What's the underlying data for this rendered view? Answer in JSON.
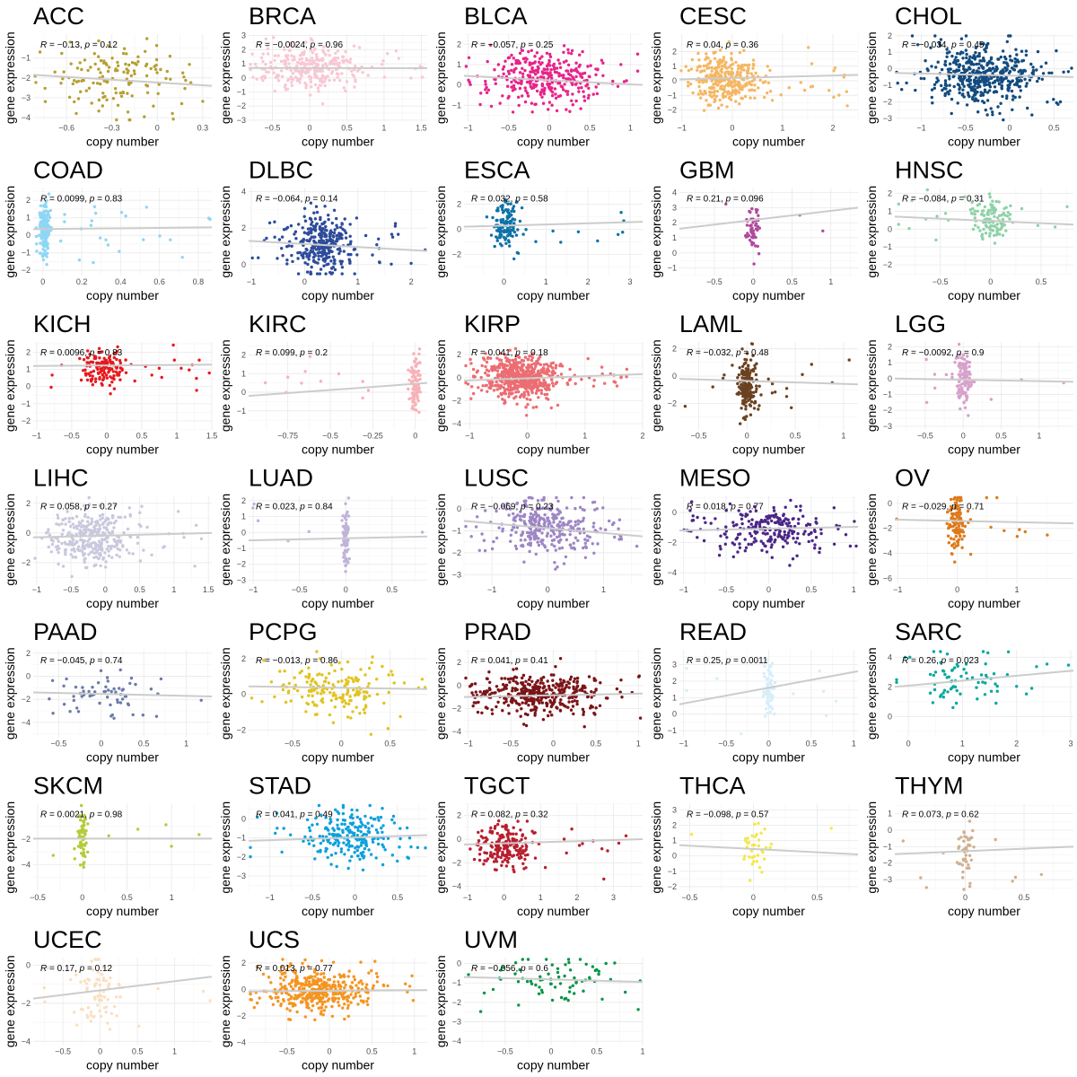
{
  "figure": {
    "xlabel": "copy number",
    "ylabel": "gene expression",
    "fit_line_color": "#cccccc",
    "grid_color": "#ebebeb"
  },
  "chart_data": [
    {
      "type": "scatter",
      "title": "ACC",
      "color": "#b5a033",
      "r": "−0.13",
      "p": "0.12",
      "xlim": [
        -0.82,
        0.36
      ],
      "ylim": [
        -4.2,
        0.2
      ],
      "xticks": [
        -0.6,
        -0.3,
        0.0,
        0.3
      ],
      "yticks": [
        -4,
        -3,
        -2,
        -1
      ],
      "fit": [
        -1.85,
        -2.4
      ],
      "x_center": -0.25,
      "x_spread": 0.22,
      "y_center": -2.1,
      "y_spread": 1.0,
      "n": 140
    },
    {
      "type": "scatter",
      "title": "BRCA",
      "color": "#f8c8d4",
      "r": "−0.0024",
      "p": "0.96",
      "xlim": [
        -0.82,
        1.58
      ],
      "ylim": [
        -3.1,
        3.1
      ],
      "xticks": [
        -0.5,
        0.0,
        0.5,
        1.0,
        1.5
      ],
      "yticks": [
        -3,
        -2,
        -1,
        0,
        1,
        2,
        3
      ],
      "fit": [
        0.7,
        0.68
      ],
      "x_center": 0.05,
      "x_spread": 0.35,
      "y_center": 0.7,
      "y_spread": 0.9,
      "n": 300
    },
    {
      "type": "scatter",
      "title": "BLCA",
      "color": "#e8238a",
      "r": "−0.057",
      "p": "0.25",
      "xlim": [
        -1.05,
        1.15
      ],
      "ylim": [
        -1.8,
        2.5
      ],
      "xticks": [
        -1.0,
        -0.5,
        0.0,
        0.5,
        1.0
      ],
      "yticks": [
        -1,
        0,
        1,
        2
      ],
      "fit": [
        0.45,
        0.0
      ],
      "x_center": -0.1,
      "x_spread": 0.35,
      "y_center": 0.3,
      "y_spread": 0.7,
      "n": 330
    },
    {
      "type": "scatter",
      "title": "CESC",
      "color": "#f5b763",
      "r": "0.04",
      "p": "0.36",
      "xlim": [
        -1.05,
        2.5
      ],
      "ylim": [
        -2.8,
        3.2
      ],
      "xticks": [
        -1,
        0,
        1,
        2
      ],
      "yticks": [
        -2,
        -1,
        0,
        1,
        2
      ],
      "fit": [
        0.1,
        0.4
      ],
      "x_center": -0.1,
      "x_spread": 0.35,
      "y_center": 0.1,
      "y_spread": 0.8,
      "n": 330
    },
    {
      "type": "scatter",
      "title": "CHOL",
      "color": "#124b7f",
      "r": "−0.034",
      "p": "0.45",
      "xlim": [
        -1.3,
        0.72
      ],
      "ylim": [
        -3.2,
        2.1
      ],
      "xticks": [
        -1.0,
        -0.5,
        0.0,
        0.5
      ],
      "yticks": [
        -3,
        -2,
        -1,
        0,
        1,
        2
      ],
      "fit": [
        -0.25,
        -0.5
      ],
      "x_center": -0.3,
      "x_spread": 0.3,
      "y_center": -0.4,
      "y_spread": 0.9,
      "n": 480
    },
    {
      "type": "scatter",
      "title": "COAD",
      "color": "#8ed6f5",
      "r": "0.0099",
      "p": "0.83",
      "xlim": [
        -0.05,
        0.87
      ],
      "ylim": [
        -2.3,
        2.7
      ],
      "xticks": [
        0.0,
        0.2,
        0.4,
        0.6,
        0.8
      ],
      "yticks": [
        -2,
        -1,
        0,
        1,
        2
      ],
      "fit": [
        0.35,
        0.45
      ],
      "x_center": 0.01,
      "x_spread": 0.015,
      "y_center": 0.3,
      "y_spread": 0.8,
      "n": 180
    },
    {
      "type": "scatter",
      "title": "DLBC",
      "color": "#2d4c9a",
      "r": "−0.064",
      "p": "0.14",
      "xlim": [
        -1.05,
        2.3
      ],
      "ylim": [
        -0.6,
        4.2
      ],
      "xticks": [
        -1,
        0,
        1,
        2
      ],
      "yticks": [
        0,
        2,
        4
      ],
      "fit": [
        1.3,
        0.75
      ],
      "x_center": 0.3,
      "x_spread": 0.3,
      "y_center": 1.1,
      "y_spread": 0.8,
      "n": 330
    },
    {
      "type": "scatter",
      "title": "ESCA",
      "color": "#0e72a8",
      "r": "0.032",
      "p": "0.58",
      "xlim": [
        -0.95,
        3.3
      ],
      "ylim": [
        -3.7,
        3.3
      ],
      "xticks": [
        0,
        1,
        2,
        3
      ],
      "yticks": [
        -2,
        0,
        2
      ],
      "fit": [
        0.2,
        0.6
      ],
      "x_center": 0.05,
      "x_spread": 0.15,
      "y_center": 0.3,
      "y_spread": 1.0,
      "n": 130
    },
    {
      "type": "scatter",
      "title": "GBM",
      "color": "#b04a9c",
      "r": "0.21",
      "p": "0.096",
      "xlim": [
        -0.95,
        1.35
      ],
      "ylim": [
        -1.5,
        4.3
      ],
      "xticks": [
        -0.5,
        0.0,
        0.5,
        1.0
      ],
      "yticks": [
        -1,
        0,
        1,
        2,
        3,
        4
      ],
      "fit": [
        1.6,
        3.0
      ],
      "x_center": 0.0,
      "x_spread": 0.05,
      "y_center": 1.8,
      "y_spread": 0.8,
      "n": 55
    },
    {
      "type": "scatter",
      "title": "HNSC",
      "color": "#8fd1a8",
      "r": "−0.084",
      "p": "0.31",
      "xlim": [
        -0.95,
        0.82
      ],
      "ylim": [
        -2.6,
        2.3
      ],
      "xticks": [
        -0.5,
        0.0,
        0.5
      ],
      "yticks": [
        -2,
        -1,
        0,
        1,
        2
      ],
      "fit": [
        0.7,
        0.25
      ],
      "x_center": 0.0,
      "x_spread": 0.1,
      "y_center": 0.5,
      "y_spread": 0.6,
      "n": 130
    },
    {
      "type": "scatter",
      "title": "KICH",
      "color": "#e8191d",
      "r": "0.0096",
      "p": "0.83",
      "xlim": [
        -1.05,
        1.5
      ],
      "ylim": [
        -2.5,
        2.6
      ],
      "xticks": [
        -1.0,
        -0.5,
        0.0,
        0.5,
        1.0,
        1.5
      ],
      "yticks": [
        -2,
        -1,
        0,
        1,
        2
      ],
      "fit": [
        1.2,
        1.28
      ],
      "x_center": -0.05,
      "x_spread": 0.15,
      "y_center": 1.1,
      "y_spread": 0.6,
      "n": 150
    },
    {
      "type": "scatter",
      "title": "KIRC",
      "color": "#f9b1b7",
      "r": "0.099",
      "p": "0.2",
      "xlim": [
        -0.98,
        0.07
      ],
      "ylim": [
        -2.0,
        2.7
      ],
      "xticks": [
        -0.75,
        -0.5,
        -0.25,
        0.0
      ],
      "yticks": [
        -1,
        0,
        1,
        2
      ],
      "fit": [
        -0.2,
        0.5
      ],
      "x_center": 0.0,
      "x_spread": 0.015,
      "y_center": 0.4,
      "y_spread": 0.8,
      "n": 110
    },
    {
      "type": "scatter",
      "title": "KIRP",
      "color": "#ec6d72",
      "r": "0.041",
      "p": "0.18",
      "xlim": [
        -1.1,
        2.0
      ],
      "ylim": [
        -4.5,
        3.1
      ],
      "xticks": [
        -1,
        0,
        1,
        2
      ],
      "yticks": [
        -4,
        -2,
        0,
        2
      ],
      "fit": [
        -0.25,
        0.3
      ],
      "x_center": -0.1,
      "x_spread": 0.35,
      "y_center": 0.0,
      "y_spread": 0.9,
      "n": 550
    },
    {
      "type": "scatter",
      "title": "LAML",
      "color": "#6b4221",
      "r": "−0.032",
      "p": "0.48",
      "xlim": [
        -0.7,
        1.15
      ],
      "ylim": [
        -3.9,
        2.5
      ],
      "xticks": [
        -0.5,
        0.0,
        0.5,
        1.0
      ],
      "yticks": [
        -2,
        0,
        2
      ],
      "fit": [
        -0.2,
        -0.6
      ],
      "x_center": 0.0,
      "x_spread": 0.05,
      "y_center": -0.5,
      "y_spread": 1.1,
      "n": 180
    },
    {
      "type": "scatter",
      "title": "LGG",
      "color": "#d7a1cc",
      "r": "−0.0092",
      "p": "0.9",
      "xlim": [
        -0.9,
        1.45
      ],
      "ylim": [
        -3.2,
        2.3
      ],
      "xticks": [
        -0.5,
        0.0,
        0.5,
        1.0
      ],
      "yticks": [
        -3,
        -2,
        -1,
        0,
        1,
        2
      ],
      "fit": [
        0.0,
        -0.2
      ],
      "x_center": 0.0,
      "x_spread": 0.06,
      "y_center": 0.0,
      "y_spread": 0.9,
      "n": 110
    },
    {
      "type": "scatter",
      "title": "LIHC",
      "color": "#c9c8de",
      "r": "0.058",
      "p": "0.27",
      "xlim": [
        -1.05,
        1.55
      ],
      "ylim": [
        -3.4,
        2.5
      ],
      "xticks": [
        -1.0,
        -0.5,
        0.0,
        0.5,
        1.0,
        1.5
      ],
      "yticks": [
        -2,
        0,
        2
      ],
      "fit": [
        -0.3,
        0.0
      ],
      "x_center": -0.2,
      "x_spread": 0.3,
      "y_center": -0.3,
      "y_spread": 0.9,
      "n": 330
    },
    {
      "type": "scatter",
      "title": "LUAD",
      "color": "#c0b3d9",
      "r": "0.023",
      "p": "0.84",
      "xlim": [
        -1.05,
        0.88
      ],
      "ylim": [
        -3.2,
        2.3
      ],
      "xticks": [
        -1.0,
        -0.5,
        0.0,
        0.5
      ],
      "yticks": [
        -3,
        -2,
        -1,
        0,
        1,
        2
      ],
      "fit": [
        -0.5,
        -0.25
      ],
      "x_center": 0.0,
      "x_spread": 0.02,
      "y_center": -0.4,
      "y_spread": 0.9,
      "n": 85
    },
    {
      "type": "scatter",
      "title": "LUSC",
      "color": "#9d86c4",
      "r": "−0.069",
      "p": "0.23",
      "xlim": [
        -1.5,
        1.7
      ],
      "ylim": [
        -3.4,
        0.6
      ],
      "xticks": [
        -1,
        0,
        1
      ],
      "yticks": [
        -3,
        -2,
        -1,
        0
      ],
      "fit": [
        -0.55,
        -1.25
      ],
      "x_center": -0.1,
      "x_spread": 0.5,
      "y_center": -0.8,
      "y_spread": 0.7,
      "n": 320
    },
    {
      "type": "scatter",
      "title": "MESO",
      "color": "#4a2687",
      "r": "0.018",
      "p": "0.77",
      "xlim": [
        -1.05,
        1.05
      ],
      "ylim": [
        -4.7,
        1.1
      ],
      "xticks": [
        -1.0,
        -0.5,
        0.0,
        0.5,
        1.0
      ],
      "yticks": [
        -4,
        -2,
        0
      ],
      "fit": [
        -1.2,
        -0.95
      ],
      "x_center": 0.0,
      "x_spread": 0.35,
      "y_center": -1.1,
      "y_spread": 0.8,
      "n": 230
    },
    {
      "type": "scatter",
      "title": "OV",
      "color": "#de7a1c",
      "r": "−0.029",
      "p": "0.71",
      "xlim": [
        -1.05,
        1.95
      ],
      "ylim": [
        -6.4,
        0.6
      ],
      "xticks": [
        -1,
        0,
        1
      ],
      "yticks": [
        -6,
        -4,
        -2,
        0
      ],
      "fit": [
        -1.3,
        -1.6
      ],
      "x_center": 0.0,
      "x_spread": 0.08,
      "y_center": -1.5,
      "y_spread": 1.2,
      "n": 120
    },
    {
      "type": "scatter",
      "title": "PAAD",
      "color": "#6b7ba8",
      "r": "−0.045",
      "p": "0.74",
      "xlim": [
        -0.8,
        1.3
      ],
      "ylim": [
        -5.3,
        2.3
      ],
      "xticks": [
        -0.5,
        0.0,
        0.5,
        1.0
      ],
      "yticks": [
        -4,
        -2,
        0,
        2
      ],
      "fit": [
        -1.4,
        -1.75
      ],
      "x_center": 0.0,
      "x_spread": 0.3,
      "y_center": -1.5,
      "y_spread": 1.0,
      "n": 65
    },
    {
      "type": "scatter",
      "title": "PCPG",
      "color": "#e2c31e",
      "r": "−0.013",
      "p": "0.86",
      "xlim": [
        -0.95,
        0.88
      ],
      "ylim": [
        -2.4,
        2.5
      ],
      "xticks": [
        -0.5,
        0.0,
        0.5
      ],
      "yticks": [
        -2,
        0,
        2
      ],
      "fit": [
        0.45,
        0.3
      ],
      "x_center": -0.1,
      "x_spread": 0.3,
      "y_center": 0.3,
      "y_spread": 0.8,
      "n": 180
    },
    {
      "type": "scatter",
      "title": "PRAD",
      "color": "#7b1418",
      "r": "0.041",
      "p": "0.41",
      "xlim": [
        -1.05,
        1.05
      ],
      "ylim": [
        -4.5,
        3.1
      ],
      "xticks": [
        -1.0,
        -0.5,
        0.0,
        0.5,
        1.0
      ],
      "yticks": [
        -4,
        -2,
        0,
        2
      ],
      "fit": [
        -1.0,
        -0.7
      ],
      "x_center": -0.2,
      "x_spread": 0.35,
      "y_center": -0.8,
      "y_spread": 0.9,
      "n": 380
    },
    {
      "type": "scatter",
      "title": "READ",
      "color": "#d5eefa",
      "r": "0.25",
      "p": "0.0011",
      "xlim": [
        -1.05,
        1.05
      ],
      "ylim": [
        -1.4,
        3.9
      ],
      "xticks": [
        -1.0,
        -0.5,
        0.0,
        0.5,
        1.0
      ],
      "yticks": [
        -1,
        0,
        1,
        2,
        3
      ],
      "fit": [
        0.6,
        2.6
      ],
      "x_center": 0.0,
      "x_spread": 0.03,
      "y_center": 1.5,
      "y_spread": 0.9,
      "n": 70
    },
    {
      "type": "scatter",
      "title": "SARC",
      "color": "#0aa89e",
      "r": "0.26",
      "p": "0.023",
      "xlim": [
        -0.25,
        3.05
      ],
      "ylim": [
        -1.4,
        4.5
      ],
      "xticks": [
        0,
        1,
        2,
        3
      ],
      "yticks": [
        0,
        2,
        4
      ],
      "fit": [
        2.0,
        3.1
      ],
      "x_center": 0.9,
      "x_spread": 0.6,
      "y_center": 2.2,
      "y_spread": 1.0,
      "n": 75
    },
    {
      "type": "scatter",
      "title": "SKCM",
      "color": "#b3cc3a",
      "r": "0.0021",
      "p": "0.98",
      "xlim": [
        -0.55,
        1.45
      ],
      "ylim": [
        -6.1,
        0.8
      ],
      "xticks": [
        -0.5,
        0.0,
        0.5,
        1.0
      ],
      "yticks": [
        -4,
        -2
      ],
      "fit": [
        -1.95,
        -1.95
      ],
      "x_center": 0.0,
      "x_spread": 0.03,
      "y_center": -2.0,
      "y_spread": 1.0,
      "n": 70
    },
    {
      "type": "scatter",
      "title": "STAD",
      "color": "#0ea0dc",
      "r": "0.041",
      "p": "0.49",
      "xlim": [
        -1.25,
        0.85
      ],
      "ylim": [
        -3.8,
        0.8
      ],
      "xticks": [
        -1.0,
        -0.5,
        0.0,
        0.5
      ],
      "yticks": [
        -3,
        -2,
        -1,
        0
      ],
      "fit": [
        -1.15,
        -0.85
      ],
      "x_center": -0.05,
      "x_spread": 0.3,
      "y_center": -0.9,
      "y_spread": 0.7,
      "n": 230
    },
    {
      "type": "scatter",
      "title": "TGCT",
      "color": "#b81e2e",
      "r": "0.082",
      "p": "0.32",
      "xlim": [
        -1.1,
        3.8
      ],
      "ylim": [
        -4.4,
        3.0
      ],
      "xticks": [
        -1,
        0,
        1,
        2,
        3
      ],
      "yticks": [
        -4,
        -2,
        0,
        2
      ],
      "fit": [
        -0.45,
        0.0
      ],
      "x_center": 0.0,
      "x_spread": 0.4,
      "y_center": -0.6,
      "y_spread": 1.0,
      "n": 210
    },
    {
      "type": "scatter",
      "title": "THCA",
      "color": "#f2e84a",
      "r": "−0.098",
      "p": "0.57",
      "xlim": [
        -0.58,
        0.82
      ],
      "ylim": [
        -2.3,
        3.4
      ],
      "xticks": [
        -0.5,
        0.0,
        0.5
      ],
      "yticks": [
        -2,
        -1,
        0,
        1,
        2,
        3
      ],
      "fit": [
        0.7,
        0.1
      ],
      "x_center": 0.0,
      "x_spread": 0.05,
      "y_center": 0.5,
      "y_spread": 1.0,
      "n": 40
    },
    {
      "type": "scatter",
      "title": "THYM",
      "color": "#cfb08e",
      "r": "0.073",
      "p": "0.62",
      "xlim": [
        -0.6,
        0.92
      ],
      "ylim": [
        -3.7,
        1.6
      ],
      "xticks": [
        0.0,
        0.5
      ],
      "yticks": [
        -3,
        -2,
        -1,
        0,
        1
      ],
      "fit": [
        -1.45,
        -1.0
      ],
      "x_center": 0.0,
      "x_spread": 0.03,
      "y_center": -1.2,
      "y_spread": 1.0,
      "n": 55
    },
    {
      "type": "scatter",
      "title": "UCEC",
      "color": "#fbdfc1",
      "r": "0.17",
      "p": "0.12",
      "xlim": [
        -0.9,
        1.5
      ],
      "ylim": [
        -4.2,
        0.4
      ],
      "xticks": [
        -0.5,
        0.0,
        0.5,
        1.0
      ],
      "yticks": [
        -4,
        -2,
        0
      ],
      "fit": [
        -1.75,
        -0.6
      ],
      "x_center": 0.0,
      "x_spread": 0.15,
      "y_center": -1.4,
      "y_spread": 0.9,
      "n": 80
    },
    {
      "type": "scatter",
      "title": "UCS",
      "color": "#f49522",
      "r": "0.013",
      "p": "0.77",
      "xlim": [
        -0.95,
        1.15
      ],
      "ylim": [
        -4.2,
        2.4
      ],
      "xticks": [
        -0.5,
        0.0,
        0.5,
        1.0
      ],
      "yticks": [
        -4,
        -2,
        0,
        2
      ],
      "fit": [
        -0.15,
        -0.05
      ],
      "x_center": -0.15,
      "x_spread": 0.3,
      "y_center": -0.1,
      "y_spread": 0.9,
      "n": 400
    },
    {
      "type": "scatter",
      "title": "UVM",
      "color": "#0a9447",
      "r": "−0.056",
      "p": "0.6",
      "xlim": [
        -0.95,
        1.0
      ],
      "ylim": [
        -4.2,
        0.3
      ],
      "xticks": [
        -0.5,
        0.0,
        0.5,
        1.0
      ],
      "yticks": [
        -4,
        -3,
        -2,
        -1,
        0
      ],
      "fit": [
        -0.7,
        -0.95
      ],
      "x_center": 0.0,
      "x_spread": 0.35,
      "y_center": -0.9,
      "y_spread": 0.7,
      "n": 75
    }
  ]
}
